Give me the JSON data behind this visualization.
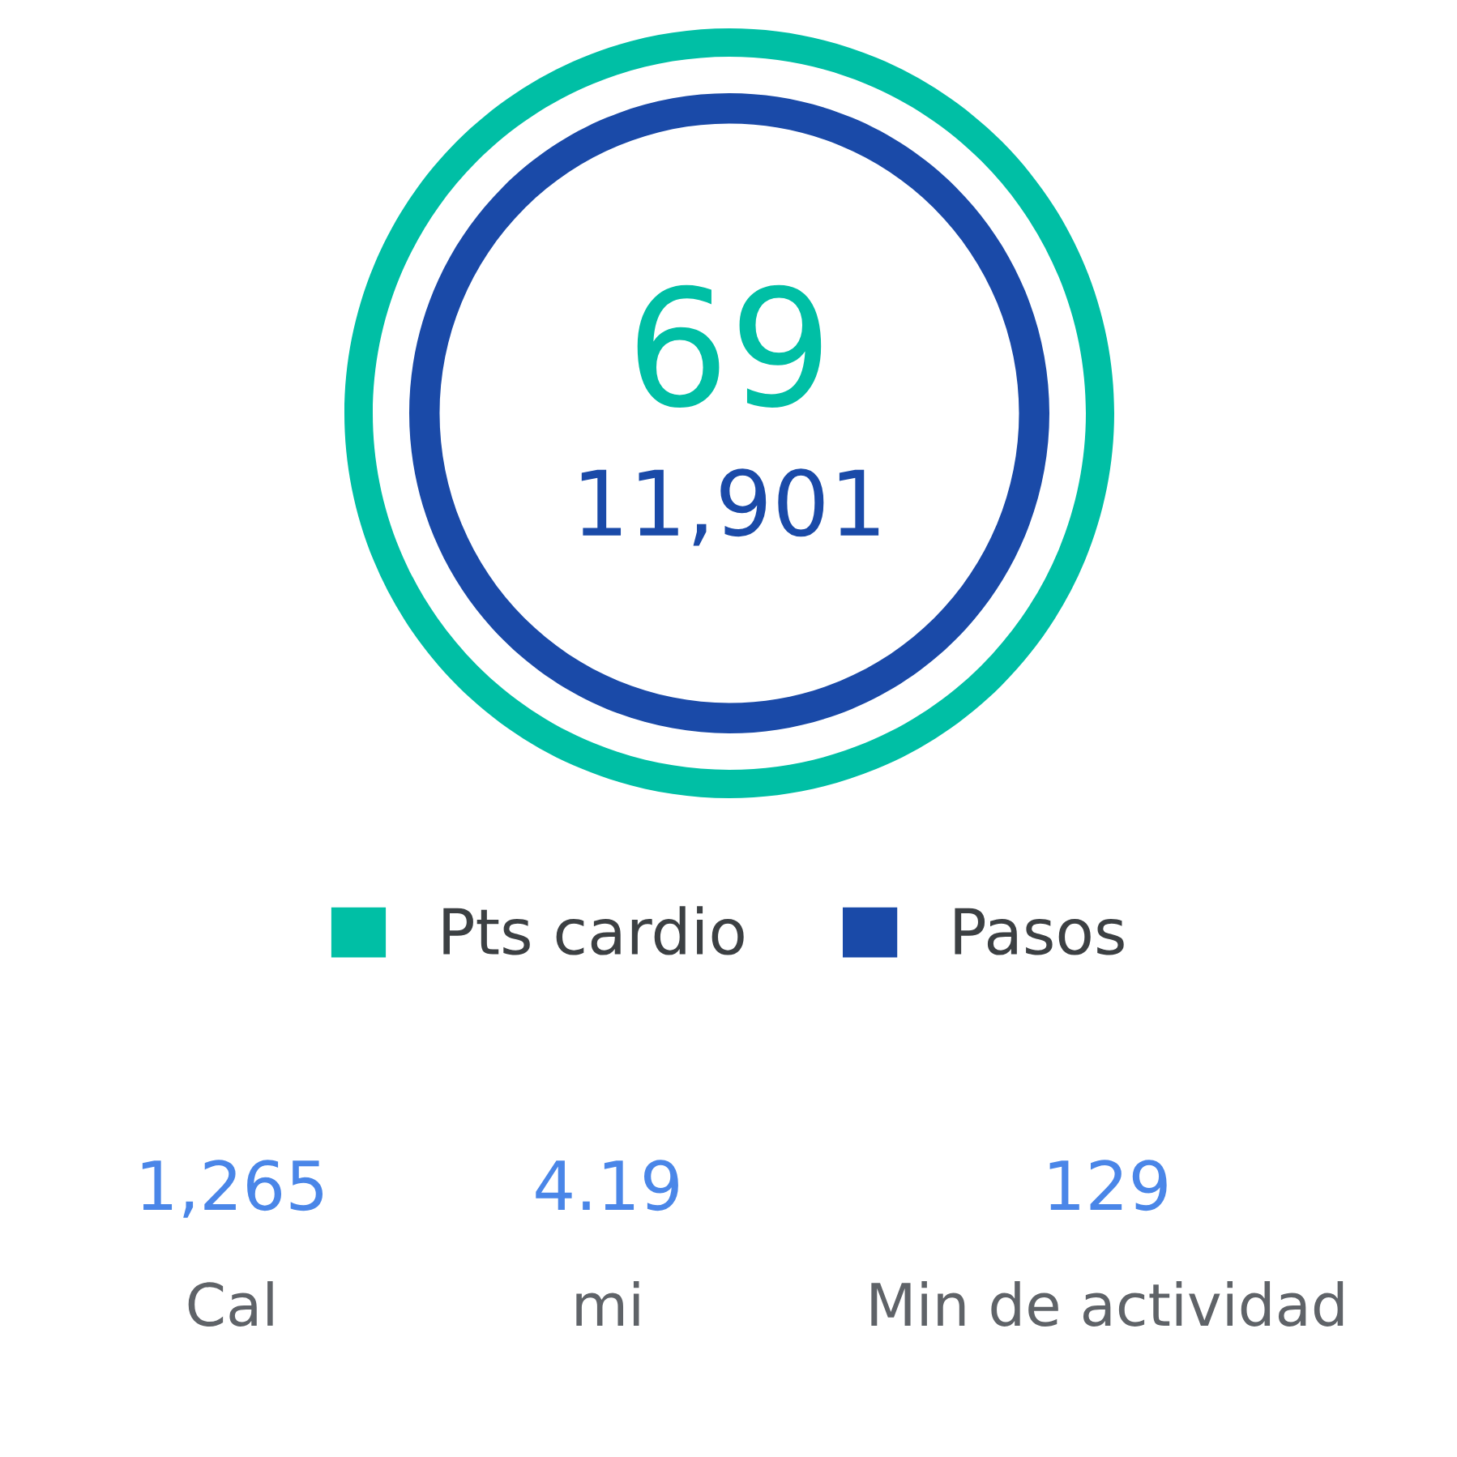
{
  "chart_data": {
    "type": "donut",
    "categories": [
      null
    ],
    "series": [
      {
        "name": "Pasos",
        "color": "#1a4aa8",
        "values": [
          100
        ]
      },
      {
        "name": "Pts cardio",
        "color": "#00bfa5",
        "values": [
          100
        ]
      }
    ],
    "annotations": [
      "69",
      "11,901",
      "1,265",
      "Cal",
      "4.19",
      "mi",
      "129",
      "Min de actividad"
    ],
    "legend": "bottom"
  }
}
